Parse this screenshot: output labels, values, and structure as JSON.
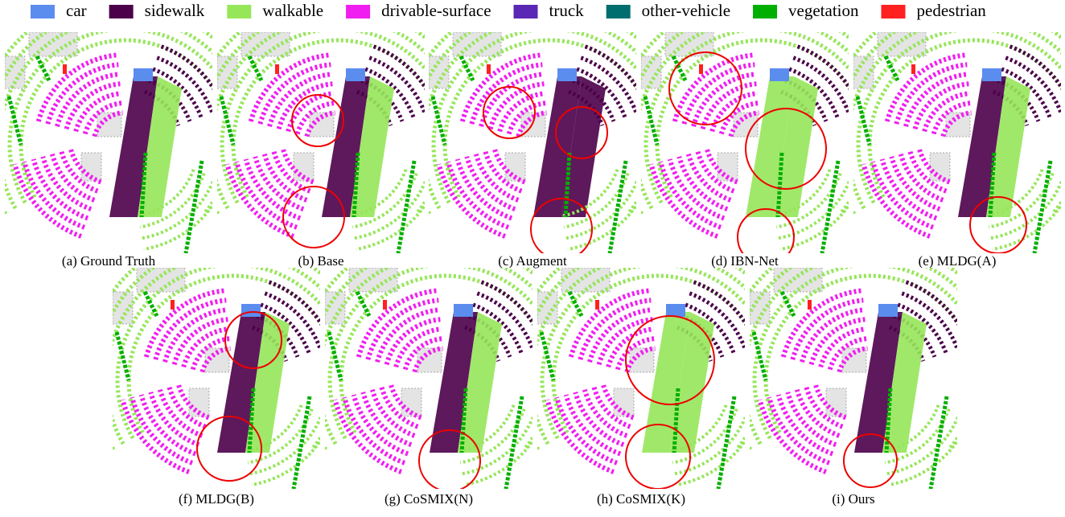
{
  "legend": [
    {
      "label": "car",
      "color": "#5b8def"
    },
    {
      "label": "sidewalk",
      "color": "#4b0049"
    },
    {
      "label": "walkable",
      "color": "#96e65a"
    },
    {
      "label": "drivable-surface",
      "color": "#f01ef0"
    },
    {
      "label": "truck",
      "color": "#5a28b4"
    },
    {
      "label": "other-vehicle",
      "color": "#006e6e"
    },
    {
      "label": "vegetation",
      "color": "#00af00"
    },
    {
      "label": "pedestrian",
      "color": "#ff2020"
    }
  ],
  "panels": [
    {
      "caption": "(a) Ground Truth"
    },
    {
      "caption": "(b) Base"
    },
    {
      "caption": "(c) Augment"
    },
    {
      "caption": "(d) IBN-Net"
    },
    {
      "caption": "(e) MLDG(A)"
    },
    {
      "caption": "(f) MLDG(B)"
    },
    {
      "caption": "(g) CoSMIX(N)"
    },
    {
      "caption": "(h) CoSMIX(K)"
    },
    {
      "caption": "(i) Ours"
    }
  ]
}
